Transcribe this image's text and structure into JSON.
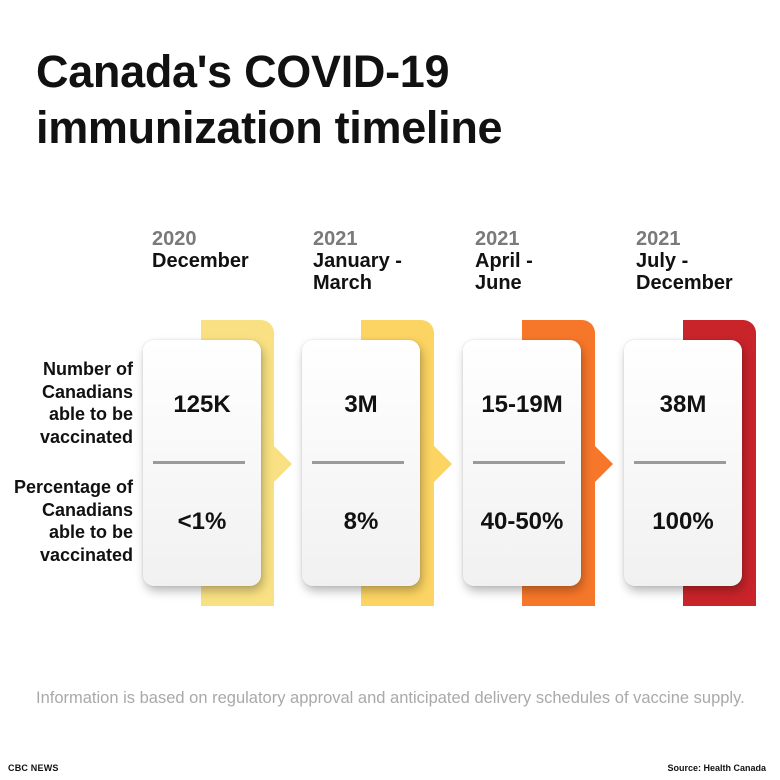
{
  "title_line1": "Canada's COVID-19",
  "title_line2": "immunization timeline",
  "row_labels": {
    "count": "Number of\nCanadians\nable to be\nvaccinated",
    "percent": "Percentage of\nCanadians\nable to be\nvaccinated"
  },
  "periods": [
    {
      "year": "2020",
      "label": "December",
      "count": "125K",
      "percent": "<1%",
      "color": "#f9e183"
    },
    {
      "year": "2021",
      "label": "January -\nMarch",
      "count": "3M",
      "percent": "8%",
      "color": "#fcd463"
    },
    {
      "year": "2021",
      "label": "April -\nJune",
      "count": "15-19M",
      "percent": "40-50%",
      "color": "#f7772a"
    },
    {
      "year": "2021",
      "label": "July -\nDecember",
      "count": "38M",
      "percent": "100%",
      "color": "#c9242a"
    }
  ],
  "note": "Information is based on regulatory approval and anticipated delivery schedules of vaccine supply.",
  "footer": {
    "left": "CBC NEWS",
    "right": "Source: Health Canada"
  }
}
